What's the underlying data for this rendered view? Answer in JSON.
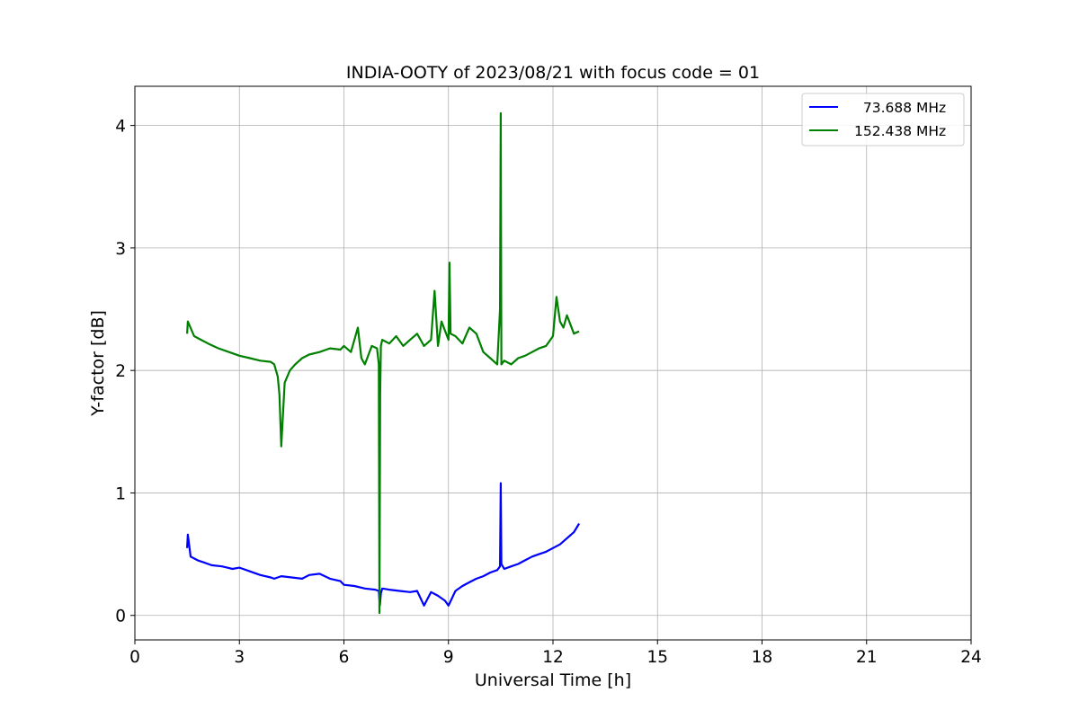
{
  "chart_data": {
    "type": "line",
    "title": "INDIA-OOTY of 2023/08/21 with focus code = 01",
    "xlabel": "Universal Time [h]",
    "ylabel": "Y-factor [dB]",
    "xlim": [
      0,
      24
    ],
    "ylim": [
      -0.2,
      4.32
    ],
    "xticks": [
      0,
      3,
      6,
      9,
      12,
      15,
      18,
      21,
      24
    ],
    "yticks": [
      0,
      1,
      2,
      3,
      4
    ],
    "grid": true,
    "legend_position": "top-right",
    "series": [
      {
        "name": "  73.688 MHz",
        "color": "#0000ff",
        "x": [
          1.5,
          1.52,
          1.6,
          1.8,
          2.0,
          2.2,
          2.5,
          2.8,
          3.0,
          3.3,
          3.6,
          3.9,
          4.0,
          4.2,
          4.5,
          4.8,
          5.0,
          5.3,
          5.6,
          5.9,
          6.0,
          6.3,
          6.6,
          6.9,
          7.0,
          7.03,
          7.06,
          7.1,
          7.3,
          7.6,
          7.9,
          8.1,
          8.3,
          8.5,
          8.7,
          8.9,
          9.0,
          9.2,
          9.4,
          9.6,
          9.8,
          10.0,
          10.2,
          10.4,
          10.48,
          10.5,
          10.52,
          10.6,
          10.8,
          11.0,
          11.2,
          11.4,
          11.6,
          11.8,
          12.0,
          12.2,
          12.4,
          12.6,
          12.75
        ],
        "y": [
          0.55,
          0.66,
          0.48,
          0.45,
          0.43,
          0.41,
          0.4,
          0.38,
          0.39,
          0.36,
          0.33,
          0.31,
          0.3,
          0.32,
          0.31,
          0.3,
          0.33,
          0.34,
          0.3,
          0.28,
          0.25,
          0.24,
          0.22,
          0.21,
          0.2,
          0.08,
          0.18,
          0.22,
          0.21,
          0.2,
          0.19,
          0.2,
          0.08,
          0.19,
          0.16,
          0.12,
          0.08,
          0.2,
          0.24,
          0.27,
          0.3,
          0.32,
          0.35,
          0.37,
          0.4,
          1.08,
          0.42,
          0.38,
          0.4,
          0.42,
          0.45,
          0.48,
          0.5,
          0.52,
          0.55,
          0.58,
          0.63,
          0.68,
          0.75
        ]
      },
      {
        "name": "152.438 MHz",
        "color": "#008000",
        "x": [
          1.5,
          1.52,
          1.7,
          1.9,
          2.1,
          2.4,
          2.7,
          3.0,
          3.3,
          3.6,
          3.9,
          4.0,
          4.1,
          4.15,
          4.2,
          4.3,
          4.45,
          4.6,
          4.8,
          5.0,
          5.3,
          5.6,
          5.9,
          6.0,
          6.2,
          6.4,
          6.5,
          6.6,
          6.8,
          6.95,
          7.0,
          7.02,
          7.04,
          7.06,
          7.1,
          7.3,
          7.5,
          7.7,
          7.9,
          8.1,
          8.3,
          8.5,
          8.6,
          8.7,
          8.8,
          9.0,
          9.03,
          9.06,
          9.2,
          9.4,
          9.6,
          9.8,
          10.0,
          10.2,
          10.4,
          10.48,
          10.5,
          10.52,
          10.6,
          10.8,
          11.0,
          11.2,
          11.4,
          11.6,
          11.8,
          12.0,
          12.1,
          12.2,
          12.3,
          12.4,
          12.6,
          12.75
        ],
        "y": [
          2.3,
          2.4,
          2.28,
          2.25,
          2.22,
          2.18,
          2.15,
          2.12,
          2.1,
          2.08,
          2.07,
          2.05,
          1.95,
          1.8,
          1.38,
          1.9,
          2.0,
          2.05,
          2.1,
          2.13,
          2.15,
          2.18,
          2.17,
          2.2,
          2.15,
          2.35,
          2.1,
          2.05,
          2.2,
          2.18,
          2.05,
          0.02,
          1.8,
          2.2,
          2.25,
          2.22,
          2.28,
          2.2,
          2.25,
          2.3,
          2.2,
          2.25,
          2.65,
          2.2,
          2.4,
          2.25,
          2.88,
          2.3,
          2.28,
          2.22,
          2.35,
          2.3,
          2.15,
          2.1,
          2.05,
          2.5,
          4.1,
          2.05,
          2.08,
          2.05,
          2.1,
          2.12,
          2.15,
          2.18,
          2.2,
          2.28,
          2.6,
          2.4,
          2.35,
          2.45,
          2.3,
          2.32
        ]
      }
    ]
  }
}
